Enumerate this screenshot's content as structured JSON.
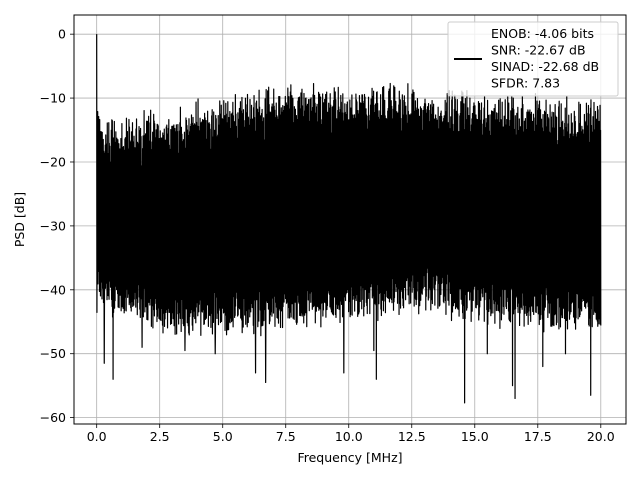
{
  "chart_data": {
    "type": "line",
    "title": "",
    "xlabel": "Frequency [MHz]",
    "ylabel": "PSD [dB]",
    "xlim": [
      -0.9,
      21.0
    ],
    "ylim": [
      -61.0,
      3.0
    ],
    "x_ticks": [
      0.0,
      2.5,
      5.0,
      7.5,
      10.0,
      12.5,
      15.0,
      17.5,
      20.0
    ],
    "x_tick_labels": [
      "0.0",
      "2.5",
      "5.0",
      "7.5",
      "10.0",
      "12.5",
      "15.0",
      "17.5",
      "20.0"
    ],
    "y_ticks": [
      0,
      -10,
      -20,
      -30,
      -40,
      -50,
      -60
    ],
    "y_tick_labels": [
      "0",
      "−10",
      "−20",
      "−30",
      "−40",
      "−50",
      "−60"
    ],
    "grid": true,
    "legend_position": "top-right",
    "legend_lines": [
      "ENOB: -4.06 bits",
      "SNR: -22.67 dB",
      "SINAD: -22.68 dB",
      "SFDR: 7.83"
    ],
    "series_color": "#000000",
    "series": [
      {
        "x_range": [
          0.0,
          20.0
        ],
        "num_points": 2000,
        "peak": {
          "x": 0.0,
          "y": 0.0
        },
        "envelope_top": {
          "x": [
            0.0,
            0.5,
            2.0,
            5.0,
            7.5,
            10.0,
            12.5,
            15.0,
            17.5,
            20.0
          ],
          "y": [
            -13,
            -17,
            -15,
            -13,
            -11,
            -11,
            -11,
            -12,
            -13,
            -14
          ]
        },
        "envelope_bottom": {
          "x": [
            0.0,
            2.5,
            5.0,
            7.5,
            10.0,
            12.5,
            15.0,
            17.5,
            20.0
          ],
          "y": [
            -42,
            -46,
            -46,
            -45,
            -44,
            -42,
            -44,
            -45,
            -45
          ]
        },
        "notable_dips": [
          {
            "x": 0.3,
            "y": -51.5
          },
          {
            "x": 0.65,
            "y": -54.0
          },
          {
            "x": 1.8,
            "y": -49.0
          },
          {
            "x": 3.5,
            "y": -49.5
          },
          {
            "x": 4.7,
            "y": -50.0
          },
          {
            "x": 6.3,
            "y": -53.0
          },
          {
            "x": 6.7,
            "y": -54.5
          },
          {
            "x": 9.8,
            "y": -53.0
          },
          {
            "x": 11.0,
            "y": -49.5
          },
          {
            "x": 11.1,
            "y": -54.0
          },
          {
            "x": 14.6,
            "y": -57.7
          },
          {
            "x": 15.5,
            "y": -50.0
          },
          {
            "x": 16.5,
            "y": -55.0
          },
          {
            "x": 16.6,
            "y": -57.0
          },
          {
            "x": 17.7,
            "y": -52.0
          },
          {
            "x": 18.6,
            "y": -50.0
          },
          {
            "x": 19.6,
            "y": -56.5
          }
        ]
      }
    ]
  }
}
